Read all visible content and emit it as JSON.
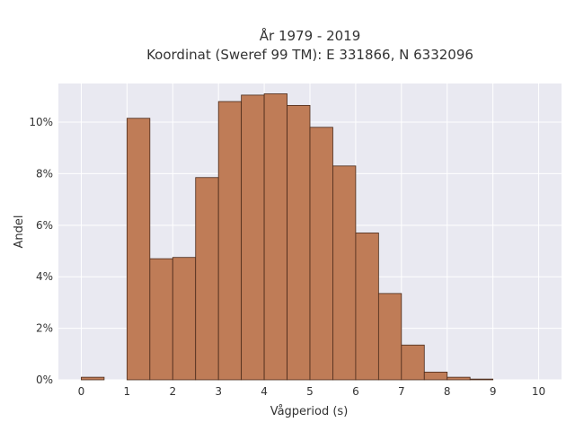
{
  "chart_data": {
    "type": "bar",
    "title": [
      "År 1979 - 2019",
      "Koordinat (Sweref 99 TM): E 331866, N 6332096"
    ],
    "xlabel": "Vågperiod (s)",
    "ylabel": "Andel",
    "xlim": [
      -0.5,
      10.5
    ],
    "ylim": [
      0,
      11.5
    ],
    "x_ticks": [
      0,
      1,
      2,
      3,
      4,
      5,
      6,
      7,
      8,
      9,
      10
    ],
    "y_ticks": [
      0,
      2,
      4,
      6,
      8,
      10
    ],
    "y_tick_labels": [
      "0%",
      "2%",
      "4%",
      "6%",
      "8%",
      "10%"
    ],
    "grid": true,
    "bin_width": 0.5,
    "bins": [
      {
        "start": 0.0,
        "value": 0.1
      },
      {
        "start": 0.5,
        "value": 0.0
      },
      {
        "start": 1.0,
        "value": 10.15
      },
      {
        "start": 1.5,
        "value": 4.7
      },
      {
        "start": 2.0,
        "value": 4.75
      },
      {
        "start": 2.5,
        "value": 7.85
      },
      {
        "start": 3.0,
        "value": 10.8
      },
      {
        "start": 3.5,
        "value": 11.05
      },
      {
        "start": 4.0,
        "value": 11.1
      },
      {
        "start": 4.5,
        "value": 10.65
      },
      {
        "start": 5.0,
        "value": 9.8
      },
      {
        "start": 5.5,
        "value": 8.3
      },
      {
        "start": 6.0,
        "value": 5.7
      },
      {
        "start": 6.5,
        "value": 3.35
      },
      {
        "start": 7.0,
        "value": 1.35
      },
      {
        "start": 7.5,
        "value": 0.3
      },
      {
        "start": 8.0,
        "value": 0.1
      },
      {
        "start": 8.5,
        "value": 0.03
      },
      {
        "start": 9.0,
        "value": 0.0
      },
      {
        "start": 9.5,
        "value": 0.0
      }
    ],
    "colors": {
      "bar_fill": "#bf7c57",
      "bar_stroke": "#4a2a1a",
      "plot_bg": "#e9e9f1",
      "grid": "#ffffff"
    }
  }
}
